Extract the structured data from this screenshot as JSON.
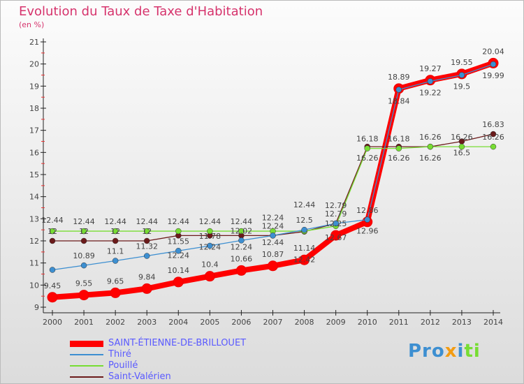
{
  "chart_data": {
    "type": "line",
    "title": "Evolution du Taux de Taxe d'Habitation",
    "ylabel": "(en %)",
    "x": [
      2000,
      2001,
      2002,
      2003,
      2004,
      2005,
      2006,
      2007,
      2008,
      2009,
      2010,
      2011,
      2012,
      2013,
      2014
    ],
    "ylim": [
      9,
      21
    ],
    "yticks": [
      9,
      10,
      11,
      12,
      13,
      14,
      15,
      16,
      17,
      18,
      19,
      20,
      21
    ],
    "grid": false,
    "legend_position": "bottom-left",
    "series": [
      {
        "name": "SAINT-ÉTIENNE-DE-BRILLOUET",
        "color": "#ff0000",
        "values": [
          9.45,
          9.55,
          9.65,
          9.84,
          10.14,
          10.4,
          10.66,
          10.87,
          11.14,
          12.25,
          12.86,
          18.89,
          19.27,
          19.55,
          20.04
        ]
      },
      {
        "name": "Thiré",
        "color": "#3d8fd1",
        "values": [
          10.69,
          10.89,
          11.1,
          11.32,
          11.55,
          11.78,
          12.02,
          12.24,
          12.5,
          12.79,
          12.96,
          18.84,
          19.22,
          19.5,
          19.99
        ]
      },
      {
        "name": "Pouillé",
        "color": "#77dd33",
        "values": [
          12.44,
          12.44,
          12.44,
          12.44,
          12.44,
          12.44,
          12.44,
          12.44,
          12.44,
          12.67,
          16.18,
          16.18,
          16.26,
          16.26,
          16.26
        ]
      },
      {
        "name": "Saint-Valérien",
        "color": "#6b1a1a",
        "values": [
          12,
          12,
          12,
          12,
          12.24,
          12.24,
          12.24,
          12.24,
          12.42,
          12.79,
          16.26,
          16.26,
          16.26,
          16.5,
          16.83
        ]
      }
    ]
  },
  "logo": "Proxiti"
}
